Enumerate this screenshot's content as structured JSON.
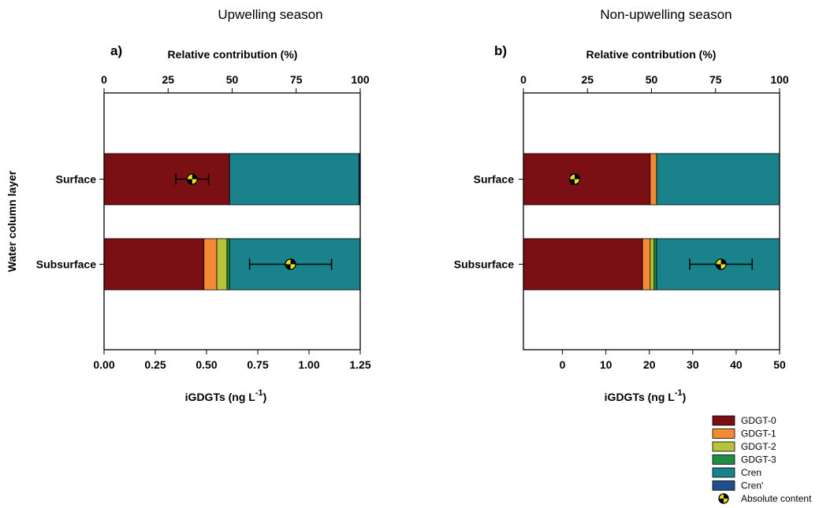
{
  "colors": {
    "GDGT-0": "#7a0f14",
    "GDGT-1": "#f58a35",
    "GDGT-2": "#b5c43a",
    "GDGT-3": "#1e8c43",
    "Cren": "#19828a",
    "Cren'": "#1f4e8c"
  },
  "legend": {
    "items": [
      "GDGT-0",
      "GDGT-1",
      "GDGT-2",
      "GDGT-3",
      "Cren",
      "Cren'"
    ],
    "marker_label": "Absolute content"
  },
  "chart_data": [
    {
      "type": "bar",
      "orientation": "horizontal-stacked",
      "title": "Upwelling season",
      "panel_label": "a)",
      "ylabel": "Water column layer",
      "categories": [
        "Surface",
        "Subsurface"
      ],
      "top_axis": {
        "label": "Relative contribution (%)",
        "range": [
          0,
          100
        ],
        "ticks": [
          "0",
          "25",
          "50",
          "75",
          "100"
        ]
      },
      "bottom_axis": {
        "label_main": "iGDGTs (ng L",
        "label_sup": "-1",
        "label_end": ")",
        "range": [
          0,
          1.25
        ],
        "ticks": [
          "0.00",
          "0.25",
          "0.50",
          "0.75",
          "1.00",
          "1.25"
        ]
      },
      "series": [
        {
          "name": "GDGT-0",
          "values": [
            49,
            39
          ]
        },
        {
          "name": "GDGT-1",
          "values": [
            0,
            5
          ]
        },
        {
          "name": "GDGT-2",
          "values": [
            0,
            4
          ]
        },
        {
          "name": "GDGT-3",
          "values": [
            0,
            1
          ]
        },
        {
          "name": "Cren",
          "values": [
            50.5,
            51
          ]
        },
        {
          "name": "Cren'",
          "values": [
            0.5,
            0
          ]
        }
      ],
      "absolute_content": [
        {
          "value": 0.43,
          "error_low": 0.35,
          "error_high": 0.51
        },
        {
          "value": 0.91,
          "error_low": 0.71,
          "error_high": 1.11
        }
      ]
    },
    {
      "type": "bar",
      "orientation": "horizontal-stacked",
      "title": "Non-upwelling season",
      "panel_label": "b)",
      "ylabel": "",
      "categories": [
        "Surface",
        "Subsurface"
      ],
      "top_axis": {
        "label": "Relative contribution (%)",
        "range": [
          0,
          100
        ],
        "ticks": [
          "0",
          "25",
          "50",
          "75",
          "100"
        ]
      },
      "bottom_axis": {
        "label_main": "iGDGTs (ng L",
        "label_sup": "-1",
        "label_end": ")",
        "range": [
          -9,
          50
        ],
        "ticks": [
          "0",
          "10",
          "20",
          "30",
          "40",
          "50"
        ]
      },
      "series": [
        {
          "name": "GDGT-0",
          "values": [
            49.5,
            46.5
          ]
        },
        {
          "name": "GDGT-1",
          "values": [
            2.5,
            3
          ]
        },
        {
          "name": "GDGT-2",
          "values": [
            0,
            1.5
          ]
        },
        {
          "name": "GDGT-3",
          "values": [
            0,
            1
          ]
        },
        {
          "name": "Cren",
          "values": [
            48,
            48
          ]
        },
        {
          "name": "Cren'",
          "values": [
            0,
            0
          ]
        }
      ],
      "absolute_content": [
        {
          "value": 2.8,
          "error_low": 2.0,
          "error_high": 3.5
        },
        {
          "value": 36.5,
          "error_low": 29.3,
          "error_high": 43.7
        }
      ]
    }
  ]
}
